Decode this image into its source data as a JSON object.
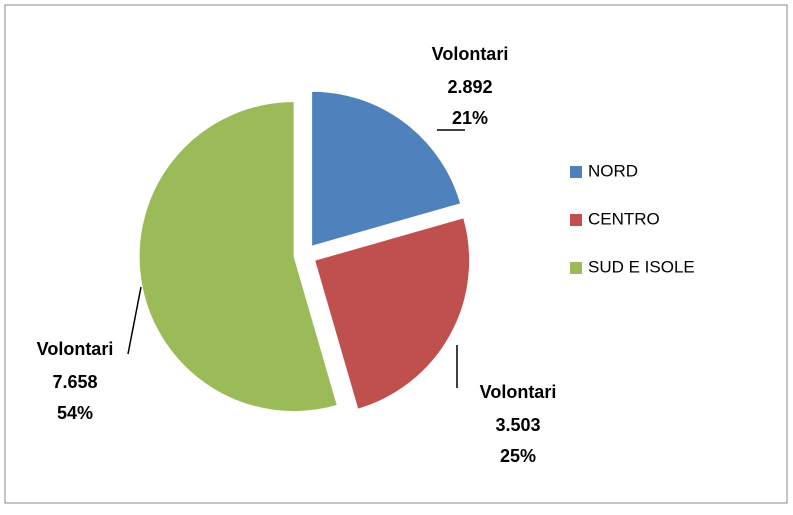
{
  "chart_data": {
    "type": "pie",
    "series_name": "Volontari",
    "categories": [
      "NORD",
      "CENTRO",
      "SUD E ISOLE"
    ],
    "values": [
      2892,
      3503,
      7658
    ],
    "value_labels": [
      "2.892",
      "3.503",
      "7.658"
    ],
    "percent_labels": [
      "21%",
      "25%",
      "54%"
    ],
    "colors": [
      "#4f81bd",
      "#c0504d",
      "#9bbb59"
    ],
    "legend": "right"
  }
}
